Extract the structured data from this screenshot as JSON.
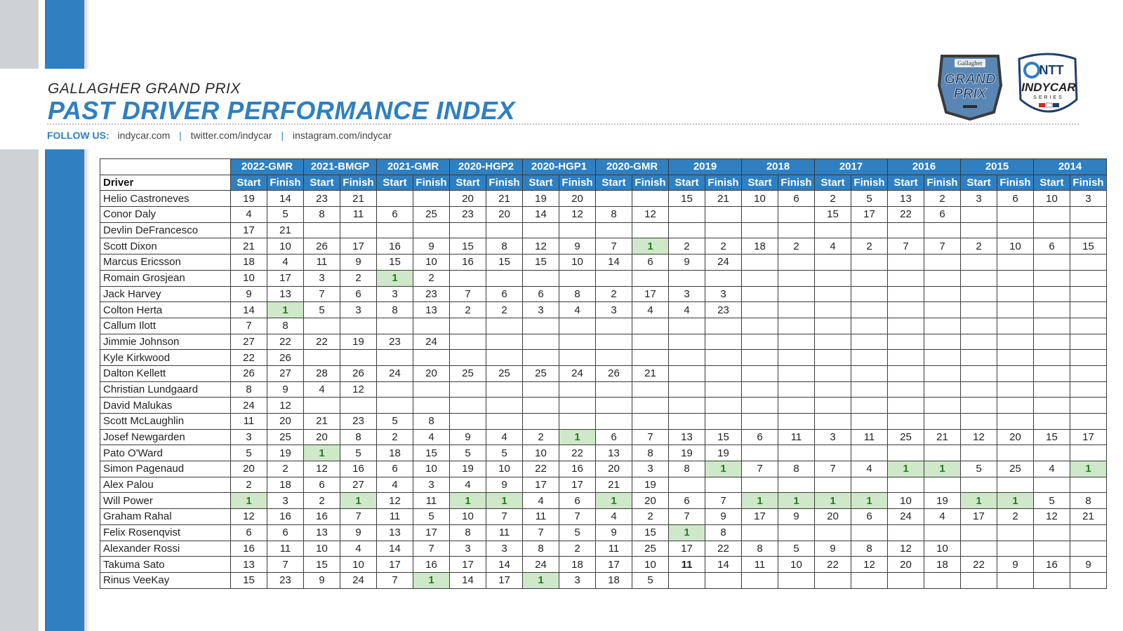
{
  "header": {
    "eyebrow": "GALLAGHER GRAND PRIX",
    "title": "PAST DRIVER PERFORMANCE INDEX",
    "follow_label": "FOLLOW US:",
    "links": [
      "indycar.com",
      "twitter.com/indycar",
      "instagram.com/indycar"
    ],
    "separator": "|"
  },
  "logos": {
    "grand_prix": {
      "top": "Gallagher",
      "line1": "GRAND",
      "line2": "PRIX"
    },
    "indycar": {
      "ntt": "NTT",
      "name": "INDYCAR",
      "series": "SERIES"
    }
  },
  "colors": {
    "accent": "#2f7fc1",
    "win_bg": "#cfe8c9",
    "win_text": "#237a23",
    "stripe_gray": "#cfd2d4"
  },
  "table": {
    "driver_header": "Driver",
    "start_label": "Start",
    "finish_label": "Finish",
    "events": [
      "2022-GMR",
      "2021-BMGP",
      "2021-GMR",
      "2020-HGP2",
      "2020-HGP1",
      "2020-GMR",
      "2019",
      "2018",
      "2017",
      "2016",
      "2015",
      "2014"
    ],
    "rows": [
      {
        "driver": "Helio Castroneves",
        "values": [
          "19",
          "14",
          "23",
          "21",
          "",
          "",
          "20",
          "21",
          "19",
          "20",
          "",
          "",
          "15",
          "21",
          "10",
          "6",
          "2",
          "5",
          "13",
          "2",
          "3",
          "6",
          "10",
          "3"
        ]
      },
      {
        "driver": "Conor Daly",
        "values": [
          "4",
          "5",
          "8",
          "11",
          "6",
          "25",
          "23",
          "20",
          "14",
          "12",
          "8",
          "12",
          "",
          "",
          "",
          "",
          "15",
          "17",
          "22",
          "6",
          "",
          "",
          "",
          ""
        ]
      },
      {
        "driver": "Devlin DeFrancesco",
        "values": [
          "17",
          "21",
          "",
          "",
          "",
          "",
          "",
          "",
          "",
          "",
          "",
          "",
          "",
          "",
          "",
          "",
          "",
          "",
          "",
          "",
          "",
          "",
          "",
          ""
        ]
      },
      {
        "driver": "Scott Dixon",
        "values": [
          "21",
          "10",
          "26",
          "17",
          "16",
          "9",
          "15",
          "8",
          "12",
          "9",
          "7",
          "1",
          "2",
          "2",
          "18",
          "2",
          "4",
          "2",
          "7",
          "7",
          "2",
          "10",
          "6",
          "15"
        ]
      },
      {
        "driver": "Marcus Ericsson",
        "values": [
          "18",
          "4",
          "11",
          "9",
          "15",
          "10",
          "16",
          "15",
          "15",
          "10",
          "14",
          "6",
          "9",
          "24",
          "",
          "",
          "",
          "",
          "",
          "",
          "",
          "",
          "",
          ""
        ]
      },
      {
        "driver": "Romain Grosjean",
        "values": [
          "10",
          "17",
          "3",
          "2",
          "1",
          "2",
          "",
          "",
          "",
          "",
          "",
          "",
          "",
          "",
          "",
          "",
          "",
          "",
          "",
          "",
          "",
          "",
          "",
          ""
        ]
      },
      {
        "driver": "Jack Harvey",
        "values": [
          "9",
          "13",
          "7",
          "6",
          "3",
          "23",
          "7",
          "6",
          "6",
          "8",
          "2",
          "17",
          "3",
          "3",
          "",
          "",
          "",
          "",
          "",
          "",
          "",
          "",
          "",
          ""
        ]
      },
      {
        "driver": "Colton Herta",
        "values": [
          "14",
          "1",
          "5",
          "3",
          "8",
          "13",
          "2",
          "2",
          "3",
          "4",
          "3",
          "4",
          "4",
          "23",
          "",
          "",
          "",
          "",
          "",
          "",
          "",
          "",
          "",
          ""
        ]
      },
      {
        "driver": "Callum Ilott",
        "values": [
          "7",
          "8",
          "",
          "",
          "",
          "",
          "",
          "",
          "",
          "",
          "",
          "",
          "",
          "",
          "",
          "",
          "",
          "",
          "",
          "",
          "",
          "",
          "",
          ""
        ]
      },
      {
        "driver": "Jimmie Johnson",
        "values": [
          "27",
          "22",
          "22",
          "19",
          "23",
          "24",
          "",
          "",
          "",
          "",
          "",
          "",
          "",
          "",
          "",
          "",
          "",
          "",
          "",
          "",
          "",
          "",
          "",
          ""
        ]
      },
      {
        "driver": "Kyle Kirkwood",
        "values": [
          "22",
          "26",
          "",
          "",
          "",
          "",
          "",
          "",
          "",
          "",
          "",
          "",
          "",
          "",
          "",
          "",
          "",
          "",
          "",
          "",
          "",
          "",
          "",
          ""
        ]
      },
      {
        "driver": "Dalton Kellett",
        "values": [
          "26",
          "27",
          "28",
          "26",
          "24",
          "20",
          "25",
          "25",
          "25",
          "24",
          "26",
          "21",
          "",
          "",
          "",
          "",
          "",
          "",
          "",
          "",
          "",
          "",
          "",
          ""
        ]
      },
      {
        "driver": "Christian Lundgaard",
        "values": [
          "8",
          "9",
          "4",
          "12",
          "",
          "",
          "",
          "",
          "",
          "",
          "",
          "",
          "",
          "",
          "",
          "",
          "",
          "",
          "",
          "",
          "",
          "",
          "",
          ""
        ]
      },
      {
        "driver": "David Malukas",
        "values": [
          "24",
          "12",
          "",
          "",
          "",
          "",
          "",
          "",
          "",
          "",
          "",
          "",
          "",
          "",
          "",
          "",
          "",
          "",
          "",
          "",
          "",
          "",
          "",
          ""
        ]
      },
      {
        "driver": "Scott McLaughlin",
        "values": [
          "11",
          "20",
          "21",
          "23",
          "5",
          "8",
          "",
          "",
          "",
          "",
          "",
          "",
          "",
          "",
          "",
          "",
          "",
          "",
          "",
          "",
          "",
          "",
          "",
          ""
        ]
      },
      {
        "driver": "Josef Newgarden",
        "values": [
          "3",
          "25",
          "20",
          "8",
          "2",
          "4",
          "9",
          "4",
          "2",
          "1",
          "6",
          "7",
          "13",
          "15",
          "6",
          "11",
          "3",
          "11",
          "25",
          "21",
          "12",
          "20",
          "15",
          "17"
        ]
      },
      {
        "driver": "Pato O'Ward",
        "values": [
          "5",
          "19",
          "1",
          "5",
          "18",
          "15",
          "5",
          "5",
          "10",
          "22",
          "13",
          "8",
          "19",
          "19",
          "",
          "",
          "",
          "",
          "",
          "",
          "",
          "",
          "",
          ""
        ]
      },
      {
        "driver": "Simon Pagenaud",
        "values": [
          "20",
          "2",
          "12",
          "16",
          "6",
          "10",
          "19",
          "10",
          "22",
          "16",
          "20",
          "3",
          "8",
          "1",
          "7",
          "8",
          "7",
          "4",
          "1",
          "1",
          "5",
          "25",
          "4",
          "1"
        ]
      },
      {
        "driver": "Alex Palou",
        "values": [
          "2",
          "18",
          "6",
          "27",
          "4",
          "3",
          "4",
          "9",
          "17",
          "17",
          "21",
          "19",
          "",
          "",
          "",
          "",
          "",
          "",
          "",
          "",
          "",
          "",
          "",
          ""
        ]
      },
      {
        "driver": "Will Power",
        "values": [
          "1",
          "3",
          "2",
          "1",
          "12",
          "11",
          "1",
          "1",
          "4",
          "6",
          "1",
          "20",
          "6",
          "7",
          "1",
          "1",
          "1",
          "1",
          "10",
          "19",
          "1",
          "1",
          "5",
          "8"
        ]
      },
      {
        "driver": "Graham Rahal",
        "values": [
          "12",
          "16",
          "16",
          "7",
          "11",
          "5",
          "10",
          "7",
          "11",
          "7",
          "4",
          "2",
          "7",
          "9",
          "17",
          "9",
          "20",
          "6",
          "24",
          "4",
          "17",
          "2",
          "12",
          "21"
        ]
      },
      {
        "driver": "Felix Rosenqvist",
        "values": [
          "6",
          "6",
          "13",
          "9",
          "13",
          "17",
          "8",
          "11",
          "7",
          "5",
          "9",
          "15",
          "1",
          "8",
          "",
          "",
          "",
          "",
          "",
          "",
          "",
          "",
          "",
          ""
        ]
      },
      {
        "driver": "Alexander Rossi",
        "values": [
          "16",
          "11",
          "10",
          "4",
          "14",
          "7",
          "3",
          "3",
          "8",
          "2",
          "11",
          "25",
          "17",
          "22",
          "8",
          "5",
          "9",
          "8",
          "12",
          "10",
          "",
          "",
          "",
          ""
        ]
      },
      {
        "driver": "Takuma Sato",
        "values": [
          "13",
          "7",
          "15",
          "10",
          "17",
          "16",
          "17",
          "14",
          "24",
          "18",
          "17",
          "10",
          "11",
          "14",
          "11",
          "10",
          "22",
          "12",
          "20",
          "18",
          "22",
          "9",
          "16",
          "9"
        ]
      },
      {
        "driver": "Rinus VeeKay",
        "values": [
          "15",
          "23",
          "9",
          "24",
          "7",
          "1",
          "14",
          "17",
          "1",
          "3",
          "18",
          "5",
          "",
          "",
          "",
          "",
          "",
          "",
          "",
          "",
          "",
          "",
          "",
          ""
        ]
      }
    ]
  }
}
